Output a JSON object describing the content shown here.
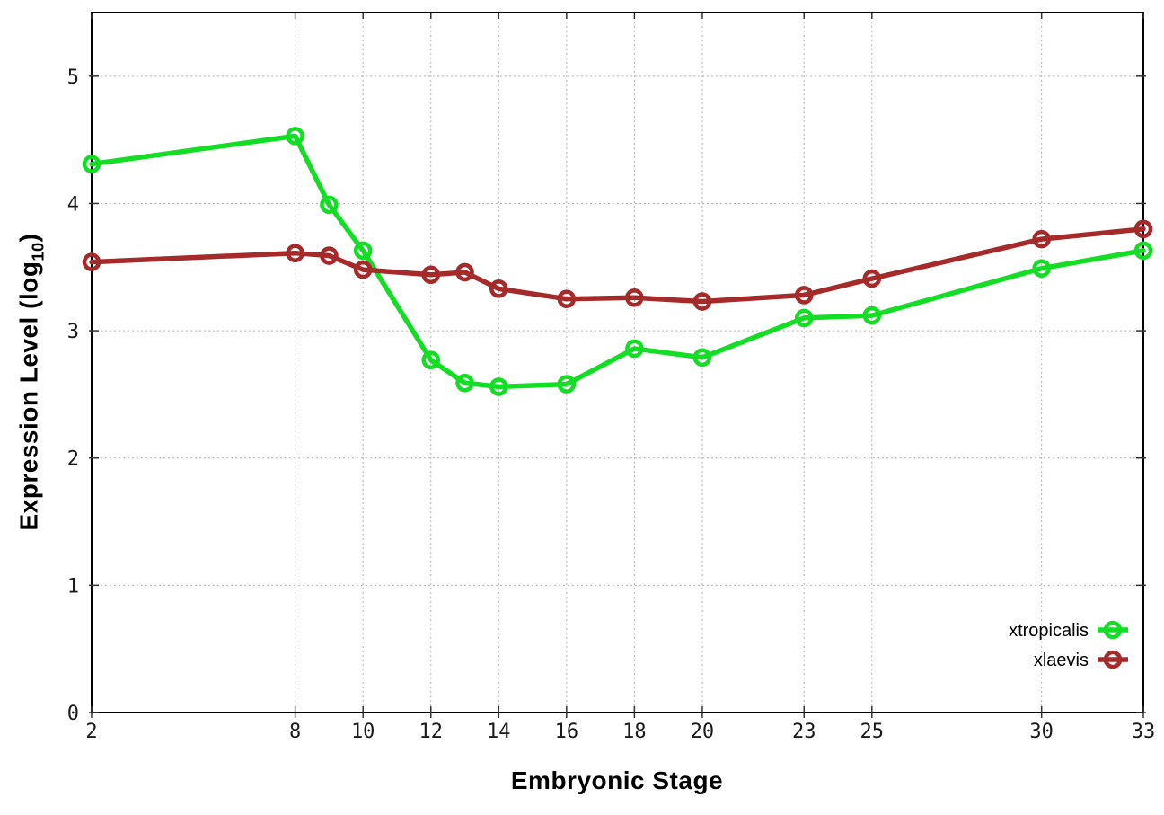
{
  "chart_data": {
    "type": "line",
    "title": "",
    "xlabel": "Embryonic Stage",
    "ylabel": "Expression Level (log10)",
    "ylabel_parts": {
      "main": "Expression Level (log",
      "sub": "10",
      "end": ")"
    },
    "x": [
      2,
      8,
      9,
      10,
      12,
      13,
      14,
      16,
      18,
      20,
      23,
      25,
      30,
      33
    ],
    "series": [
      {
        "name": "xtropicalis",
        "color": "#14dd25",
        "values": [
          4.31,
          4.53,
          3.99,
          3.63,
          2.77,
          2.59,
          2.56,
          2.58,
          2.86,
          2.79,
          3.1,
          3.12,
          3.49,
          3.63
        ]
      },
      {
        "name": "xlaevis",
        "color": "#a52a2a",
        "values": [
          3.54,
          3.61,
          3.59,
          3.48,
          3.44,
          3.46,
          3.33,
          3.25,
          3.26,
          3.23,
          3.28,
          3.41,
          3.72,
          3.8
        ]
      }
    ],
    "x_ticks": [
      2,
      8,
      10,
      12,
      14,
      16,
      18,
      20,
      23,
      25,
      30,
      33
    ],
    "y_ticks": [
      0,
      1,
      2,
      3,
      4,
      5
    ],
    "xlim": [
      2,
      33
    ],
    "ylim": [
      0,
      5.5
    ],
    "grid": true,
    "marker": "open-circle",
    "legend_position": "inside-bottom-right"
  },
  "styles": {
    "background": "#ffffff",
    "border_color": "#000000",
    "grid_color": "#b0b0b0",
    "tick_color": "#333333",
    "tick_label_color": "#1a1a1a",
    "legend_text_color": "#000000"
  }
}
